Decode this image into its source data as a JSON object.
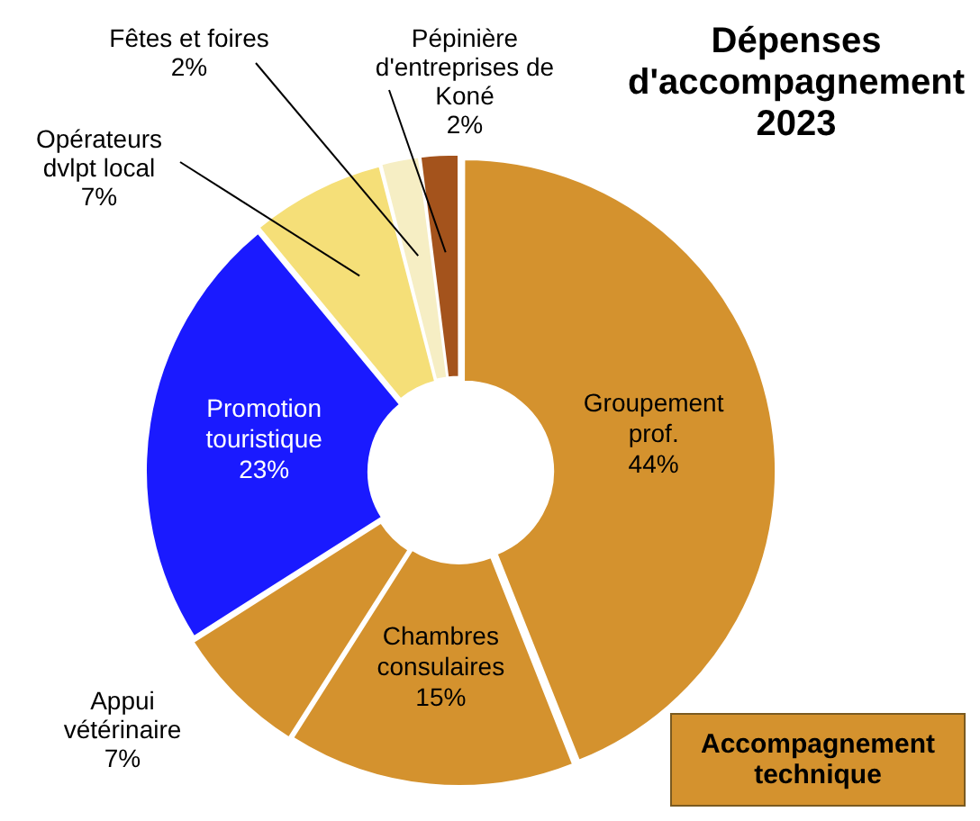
{
  "chart_data": {
    "type": "donut",
    "title": "Dépenses d'accompagnement 2023",
    "categories": [
      "Groupement prof.",
      "Chambres consulaires",
      "Appui vétérinaire",
      "Promotion touristique",
      "Opérateurs dvlpt local",
      "Fêtes et foires",
      "Pépinière d'entreprises de Koné"
    ],
    "values": [
      44,
      15,
      7,
      23,
      7,
      2,
      2
    ],
    "colors": [
      "#d4922e",
      "#d4922e",
      "#d4922e",
      "#1a1aff",
      "#f5df78",
      "#f6eec4",
      "#a4531c"
    ],
    "value_labels": [
      "44%",
      "15%",
      "7%",
      "23%",
      "7%",
      "2%",
      "2%"
    ],
    "annotations": [
      "Accompagnement technique"
    ]
  }
}
